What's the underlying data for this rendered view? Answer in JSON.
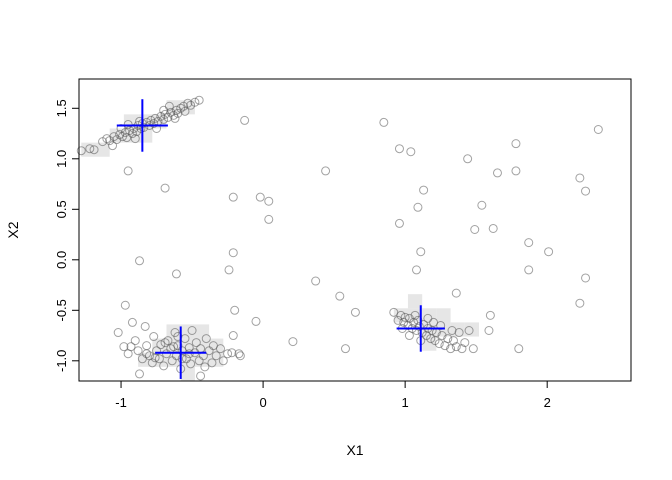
{
  "chart_data": {
    "type": "scatter",
    "title": "",
    "xlabel": "X1",
    "ylabel": "X2",
    "xlim": [
      -1.296,
      2.59
    ],
    "ylim": [
      -1.2,
      1.79
    ],
    "xticks": [
      -1,
      0,
      1,
      2
    ],
    "xtick_labels": [
      "-1",
      "0",
      "1",
      "2"
    ],
    "yticks": [
      -1.0,
      -0.5,
      0.0,
      0.5,
      1.0,
      1.5
    ],
    "ytick_labels": [
      "-1.0",
      "-0.5",
      "0.0",
      "0.5",
      "1.0",
      "1.5"
    ],
    "grid": false,
    "colors": {
      "points": "#808080",
      "centers": "#0000ff",
      "cells": "#dcdcdc"
    },
    "centers": [
      {
        "x": -0.85,
        "y": 1.33,
        "sx": 0.18,
        "sy": 0.26
      },
      {
        "x": -0.58,
        "y": -0.92,
        "sx": 0.18,
        "sy": 0.26
      },
      {
        "x": 1.11,
        "y": -0.68,
        "sx": 0.17,
        "sy": 0.23
      }
    ],
    "cell_size": [
      0.1,
      0.14
    ],
    "shaded_cells": [
      [
        -1.28,
        1.02
      ],
      [
        -1.18,
        1.02
      ],
      [
        -1.08,
        1.16
      ],
      [
        -0.98,
        1.16
      ],
      [
        -0.98,
        1.3
      ],
      [
        -0.88,
        1.3
      ],
      [
        -0.78,
        1.3
      ],
      [
        -0.68,
        1.44
      ],
      [
        -0.58,
        1.44
      ],
      [
        -0.88,
        1.16
      ],
      [
        -0.78,
        -1.06
      ],
      [
        -0.68,
        -1.06
      ],
      [
        -0.58,
        -1.06
      ],
      [
        -0.48,
        -1.06
      ],
      [
        -0.38,
        -1.06
      ],
      [
        -0.78,
        -0.92
      ],
      [
        -0.68,
        -0.92
      ],
      [
        -0.58,
        -0.92
      ],
      [
        -0.48,
        -0.92
      ],
      [
        -0.38,
        -0.92
      ],
      [
        -0.68,
        -0.78
      ],
      [
        -0.58,
        -0.78
      ],
      [
        -0.48,
        -0.78
      ],
      [
        -0.58,
        -1.2
      ],
      [
        -0.88,
        -1.06
      ],
      [
        0.92,
        -0.62
      ],
      [
        1.02,
        -0.62
      ],
      [
        1.02,
        -0.48
      ],
      [
        1.12,
        -0.62
      ],
      [
        1.22,
        -0.62
      ],
      [
        1.12,
        -0.76
      ],
      [
        1.22,
        -0.76
      ],
      [
        1.32,
        -0.76
      ],
      [
        1.42,
        -0.76
      ],
      [
        1.12,
        -0.9
      ]
    ],
    "points": [
      [
        -1.28,
        1.08
      ],
      [
        -1.22,
        1.1
      ],
      [
        -1.19,
        1.09
      ],
      [
        -1.13,
        1.17
      ],
      [
        -1.1,
        1.2
      ],
      [
        -1.08,
        1.18
      ],
      [
        -1.05,
        1.22
      ],
      [
        -1.03,
        1.19
      ],
      [
        -1.01,
        1.24
      ],
      [
        -0.99,
        1.22
      ],
      [
        -0.97,
        1.26
      ],
      [
        -0.96,
        1.21
      ],
      [
        -0.94,
        1.28
      ],
      [
        -0.92,
        1.25
      ],
      [
        -0.91,
        1.3
      ],
      [
        -0.89,
        1.27
      ],
      [
        -0.88,
        1.33
      ],
      [
        -0.86,
        1.3
      ],
      [
        -0.85,
        1.35
      ],
      [
        -0.84,
        1.31
      ],
      [
        -0.82,
        1.36
      ],
      [
        -0.8,
        1.33
      ],
      [
        -0.79,
        1.38
      ],
      [
        -0.77,
        1.35
      ],
      [
        -0.76,
        1.4
      ],
      [
        -0.74,
        1.37
      ],
      [
        -0.72,
        1.42
      ],
      [
        -0.7,
        1.39
      ],
      [
        -0.69,
        1.44
      ],
      [
        -0.67,
        1.41
      ],
      [
        -0.65,
        1.46
      ],
      [
        -0.63,
        1.43
      ],
      [
        -0.61,
        1.48
      ],
      [
        -0.6,
        1.45
      ],
      [
        -0.58,
        1.5
      ],
      [
        -0.55,
        1.47
      ],
      [
        -0.53,
        1.55
      ],
      [
        -0.51,
        1.53
      ],
      [
        -0.48,
        1.56
      ],
      [
        -0.45,
        1.58
      ],
      [
        -0.56,
        1.52
      ],
      [
        -0.62,
        1.4
      ],
      [
        -0.9,
        1.2
      ],
      [
        -1.0,
        1.3
      ],
      [
        -0.87,
        1.37
      ],
      [
        -0.75,
        1.3
      ],
      [
        -0.95,
        1.34
      ],
      [
        -0.7,
        1.48
      ],
      [
        -1.06,
        1.13
      ],
      [
        -0.66,
        1.52
      ],
      [
        -1.02,
        -0.72
      ],
      [
        -0.98,
        -0.86
      ],
      [
        -0.95,
        -0.93
      ],
      [
        -0.92,
        -0.62
      ],
      [
        -0.9,
        -0.8
      ],
      [
        -0.88,
        -0.9
      ],
      [
        -0.87,
        -1.13
      ],
      [
        -0.85,
        -0.98
      ],
      [
        -0.83,
        -0.66
      ],
      [
        -0.82,
        -0.85
      ],
      [
        -0.8,
        -0.95
      ],
      [
        -0.78,
        -1.02
      ],
      [
        -0.77,
        -0.76
      ],
      [
        -0.75,
        -0.9
      ],
      [
        -0.73,
        -0.98
      ],
      [
        -0.72,
        -0.84
      ],
      [
        -0.7,
        -1.05
      ],
      [
        -0.68,
        -0.93
      ],
      [
        -0.67,
        -0.8
      ],
      [
        -0.65,
        -0.88
      ],
      [
        -0.64,
        -1.0
      ],
      [
        -0.62,
        -0.72
      ],
      [
        -0.61,
        -0.95
      ],
      [
        -0.6,
        -0.85
      ],
      [
        -0.58,
        -1.08
      ],
      [
        -0.57,
        -0.9
      ],
      [
        -0.55,
        -0.78
      ],
      [
        -0.54,
        -0.98
      ],
      [
        -0.52,
        -0.87
      ],
      [
        -0.51,
        -1.03
      ],
      [
        -0.5,
        -0.7
      ],
      [
        -0.48,
        -0.92
      ],
      [
        -0.47,
        -0.82
      ],
      [
        -0.45,
        -1.0
      ],
      [
        -0.44,
        -0.88
      ],
      [
        -0.42,
        -0.95
      ],
      [
        -0.4,
        -0.78
      ],
      [
        -0.38,
        -0.9
      ],
      [
        -0.36,
        -1.02
      ],
      [
        -0.35,
        -0.85
      ],
      [
        -0.33,
        -0.95
      ],
      [
        -0.3,
        -0.88
      ],
      [
        -0.28,
        -1.0
      ],
      [
        -0.25,
        -0.93
      ],
      [
        -0.22,
        -0.92
      ],
      [
        -0.21,
        -0.75
      ],
      [
        -0.17,
        -0.93
      ],
      [
        -0.16,
        -0.95
      ],
      [
        -0.44,
        -1.15
      ],
      [
        -0.82,
        -0.93
      ],
      [
        -0.93,
        -0.86
      ],
      [
        -0.63,
        -0.86
      ],
      [
        -0.57,
        -0.98
      ],
      [
        -0.69,
        -0.82
      ],
      [
        -0.41,
        -1.06
      ],
      [
        -0.76,
        -0.97
      ],
      [
        -0.52,
        -0.93
      ],
      [
        -0.6,
        -0.76
      ],
      [
        0.92,
        -0.52
      ],
      [
        0.95,
        -0.6
      ],
      [
        0.97,
        -0.55
      ],
      [
        0.99,
        -0.62
      ],
      [
        1.0,
        -0.57
      ],
      [
        1.02,
        -0.65
      ],
      [
        1.03,
        -0.58
      ],
      [
        1.05,
        -0.68
      ],
      [
        1.06,
        -0.62
      ],
      [
        1.08,
        -0.7
      ],
      [
        1.09,
        -0.6
      ],
      [
        1.1,
        -0.66
      ],
      [
        1.12,
        -0.72
      ],
      [
        1.13,
        -0.64
      ],
      [
        1.15,
        -0.75
      ],
      [
        1.16,
        -0.68
      ],
      [
        1.18,
        -0.78
      ],
      [
        1.19,
        -0.7
      ],
      [
        1.21,
        -0.8
      ],
      [
        1.22,
        -0.72
      ],
      [
        1.24,
        -0.83
      ],
      [
        1.26,
        -0.75
      ],
      [
        1.28,
        -0.85
      ],
      [
        1.3,
        -0.78
      ],
      [
        1.32,
        -0.88
      ],
      [
        1.34,
        -0.8
      ],
      [
        1.36,
        -0.86
      ],
      [
        1.38,
        -0.72
      ],
      [
        1.4,
        -0.88
      ],
      [
        1.42,
        -0.82
      ],
      [
        1.45,
        -0.7
      ],
      [
        1.48,
        -0.88
      ],
      [
        1.03,
        -0.75
      ],
      [
        1.07,
        -0.55
      ],
      [
        1.16,
        -0.58
      ],
      [
        1.2,
        -0.62
      ],
      [
        0.98,
        -0.68
      ],
      [
        1.25,
        -0.65
      ],
      [
        1.33,
        -0.7
      ],
      [
        1.11,
        -0.8
      ],
      [
        -0.13,
        1.38
      ],
      [
        -0.95,
        0.88
      ],
      [
        -0.69,
        0.71
      ],
      [
        -0.21,
        0.62
      ],
      [
        -0.02,
        0.62
      ],
      [
        0.04,
        0.58
      ],
      [
        0.04,
        0.4
      ],
      [
        0.44,
        0.88
      ],
      [
        0.85,
        1.36
      ],
      [
        0.96,
        1.1
      ],
      [
        1.04,
        1.07
      ],
      [
        1.44,
        1.0
      ],
      [
        1.78,
        1.15
      ],
      [
        2.23,
        0.81
      ],
      [
        2.36,
        1.29
      ],
      [
        2.27,
        0.68
      ],
      [
        1.65,
        0.86
      ],
      [
        1.78,
        0.88
      ],
      [
        1.13,
        0.69
      ],
      [
        1.09,
        0.52
      ],
      [
        0.96,
        0.36
      ],
      [
        1.54,
        0.54
      ],
      [
        1.49,
        0.3
      ],
      [
        1.62,
        0.31
      ],
      [
        1.87,
        0.17
      ],
      [
        2.01,
        0.08
      ],
      [
        1.11,
        0.08
      ],
      [
        1.08,
        -0.1
      ],
      [
        1.87,
        -0.1
      ],
      [
        2.27,
        -0.18
      ],
      [
        2.23,
        -0.43
      ],
      [
        1.36,
        -0.33
      ],
      [
        -0.87,
        -0.01
      ],
      [
        -0.61,
        -0.14
      ],
      [
        -0.21,
        0.07
      ],
      [
        -0.24,
        -0.1
      ],
      [
        0.37,
        -0.21
      ],
      [
        0.54,
        -0.36
      ],
      [
        0.65,
        -0.52
      ],
      [
        -0.2,
        -0.5
      ],
      [
        -0.05,
        -0.61
      ],
      [
        0.21,
        -0.81
      ],
      [
        0.58,
        -0.88
      ],
      [
        1.8,
        -0.88
      ],
      [
        1.6,
        -0.55
      ],
      [
        1.59,
        -0.7
      ],
      [
        -0.97,
        -0.45
      ]
    ]
  }
}
